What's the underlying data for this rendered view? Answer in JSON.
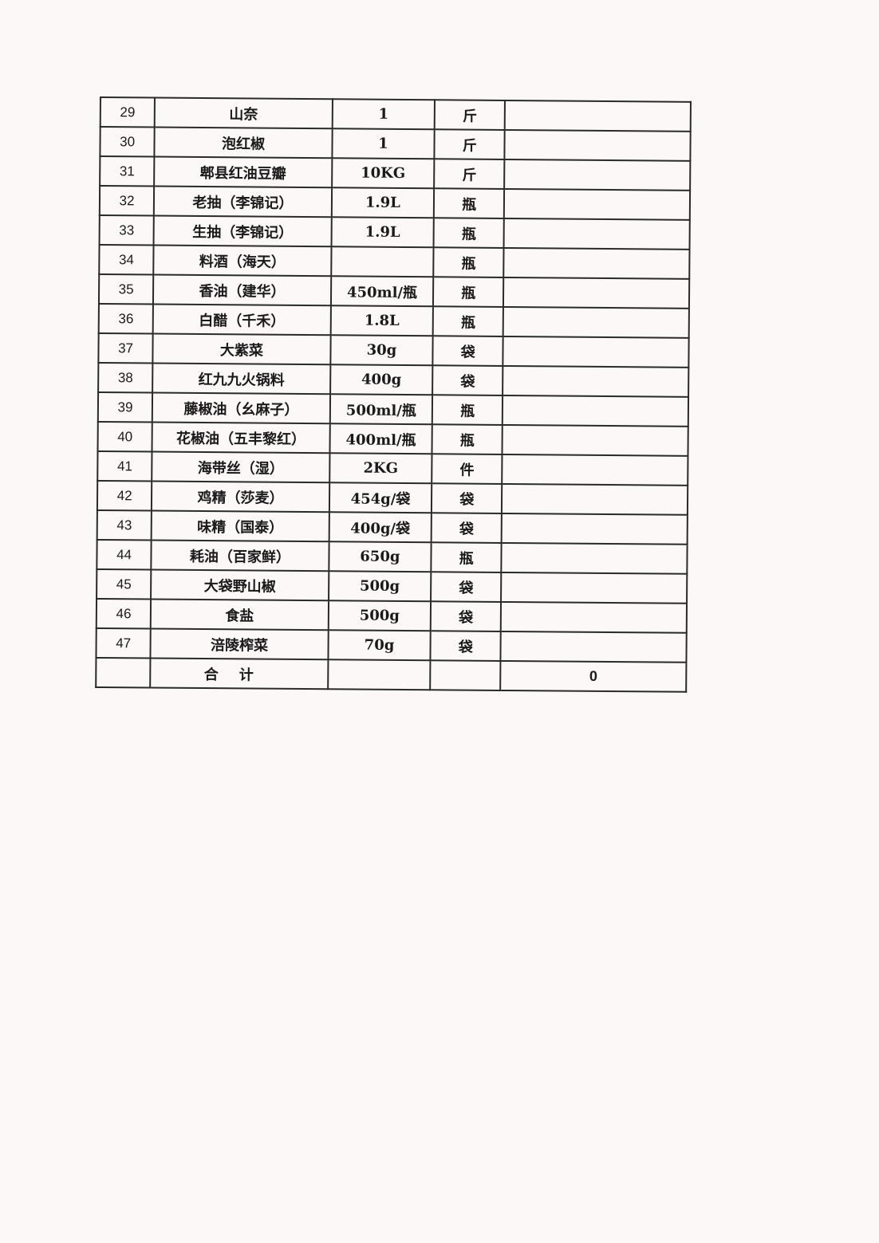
{
  "table": {
    "rows": [
      {
        "no": "29",
        "name": "山奈",
        "spec": "1",
        "unit": "斤",
        "amount": ""
      },
      {
        "no": "30",
        "name": "泡红椒",
        "spec": "1",
        "unit": "斤",
        "amount": ""
      },
      {
        "no": "31",
        "name": "郫县红油豆瓣",
        "spec": "10KG",
        "unit": "斤",
        "amount": ""
      },
      {
        "no": "32",
        "name": "老抽（李锦记）",
        "spec": "1.9L",
        "unit": "瓶",
        "amount": ""
      },
      {
        "no": "33",
        "name": "生抽（李锦记）",
        "spec": "1.9L",
        "unit": "瓶",
        "amount": ""
      },
      {
        "no": "34",
        "name": "料酒（海天）",
        "spec": "",
        "unit": "瓶",
        "amount": ""
      },
      {
        "no": "35",
        "name": "香油（建华）",
        "spec": "450ml/瓶",
        "unit": "瓶",
        "amount": ""
      },
      {
        "no": "36",
        "name": "白醋（千禾）",
        "spec": "1.8L",
        "unit": "瓶",
        "amount": ""
      },
      {
        "no": "37",
        "name": "大紫菜",
        "spec": "30g",
        "unit": "袋",
        "amount": ""
      },
      {
        "no": "38",
        "name": "红九九火锅料",
        "spec": "400g",
        "unit": "袋",
        "amount": ""
      },
      {
        "no": "39",
        "name": "藤椒油（幺麻子）",
        "spec": "500ml/瓶",
        "unit": "瓶",
        "amount": ""
      },
      {
        "no": "40",
        "name": "花椒油（五丰黎红）",
        "spec": "400ml/瓶",
        "unit": "瓶",
        "amount": ""
      },
      {
        "no": "41",
        "name": "海带丝（湿）",
        "spec": "2KG",
        "unit": "件",
        "amount": ""
      },
      {
        "no": "42",
        "name": "鸡精（莎麦）",
        "spec": "454g/袋",
        "unit": "袋",
        "amount": ""
      },
      {
        "no": "43",
        "name": "味精（国泰）",
        "spec": "400g/袋",
        "unit": "袋",
        "amount": ""
      },
      {
        "no": "44",
        "name": "耗油（百家鲜）",
        "spec": "650g",
        "unit": "瓶",
        "amount": ""
      },
      {
        "no": "45",
        "name": "大袋野山椒",
        "spec": "500g",
        "unit": "袋",
        "amount": ""
      },
      {
        "no": "46",
        "name": "食盐",
        "spec": "500g",
        "unit": "袋",
        "amount": ""
      },
      {
        "no": "47",
        "name": "涪陵榨菜",
        "spec": "70g",
        "unit": "袋",
        "amount": ""
      }
    ],
    "total": {
      "label": "合计",
      "value": "0"
    }
  }
}
